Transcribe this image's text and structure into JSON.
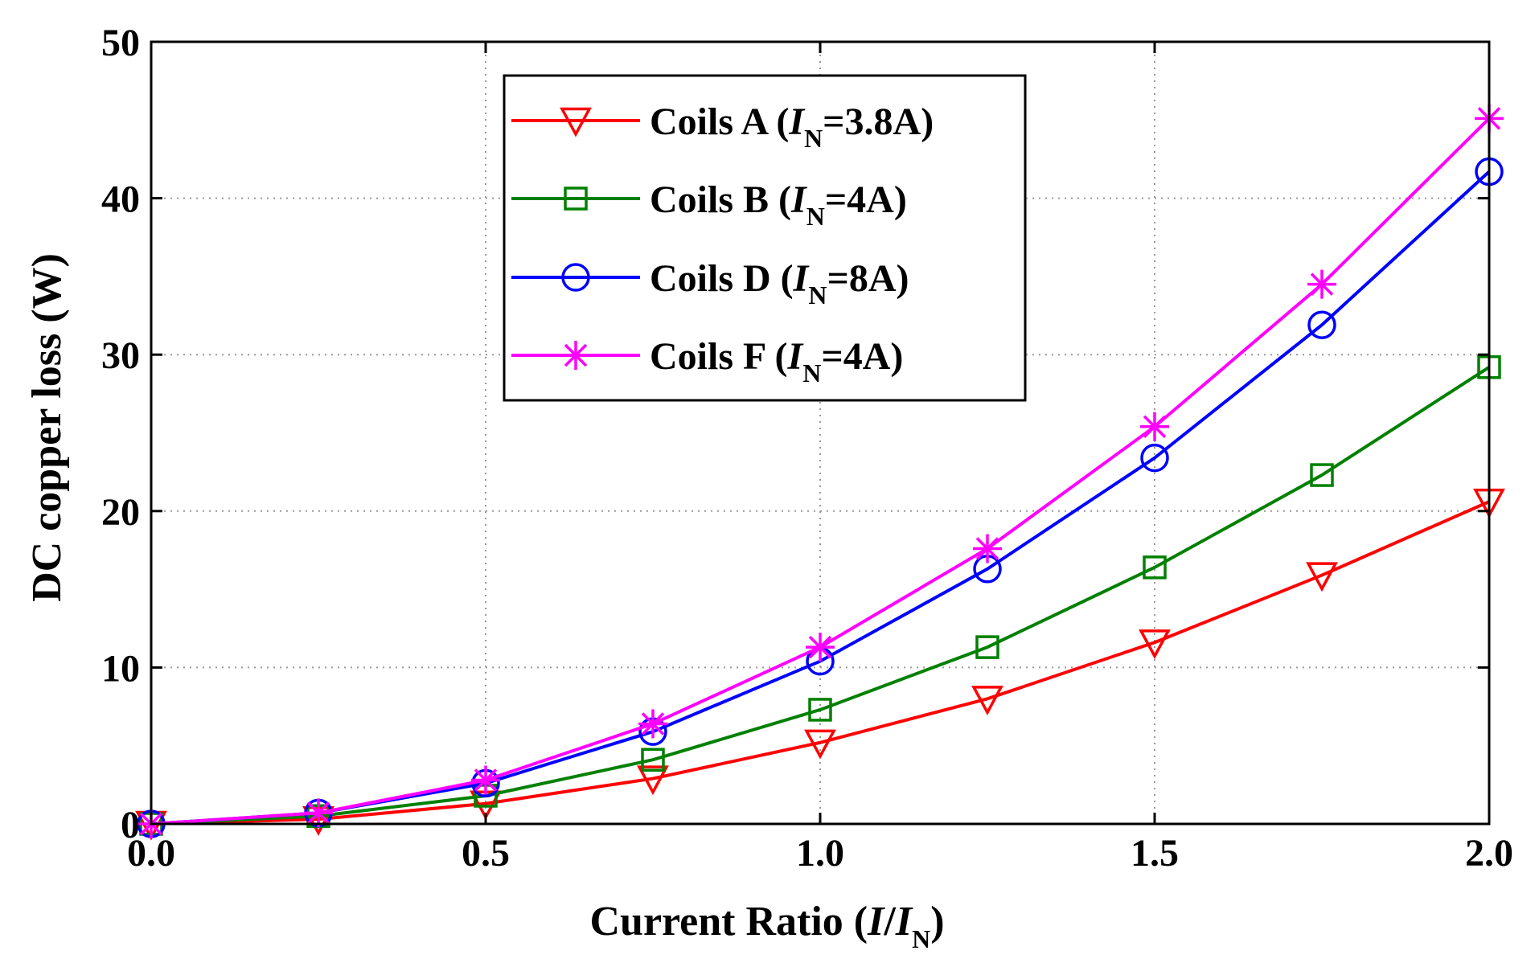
{
  "chart_data": {
    "type": "line",
    "title": "",
    "xlabel": {
      "main": "Current Ratio (",
      "italic_1": "I",
      "slash": "/",
      "italic_2": "I",
      "subscript": "N",
      "close": ")"
    },
    "ylabel": "DC copper loss (W)",
    "xlim": [
      0,
      2
    ],
    "ylim": [
      0,
      50
    ],
    "xticks": [
      "0.0",
      "0.5",
      "1.0",
      "1.5",
      "2.0"
    ],
    "xtick_values": [
      0,
      0.5,
      1.0,
      1.5,
      2.0
    ],
    "yticks": [
      "0",
      "10",
      "20",
      "30",
      "40",
      "50"
    ],
    "ytick_values": [
      0,
      10,
      20,
      30,
      40,
      50
    ],
    "grid": true,
    "legend_position": "top-center",
    "x": [
      0,
      0.25,
      0.5,
      0.75,
      1.0,
      1.25,
      1.5,
      1.75,
      2.0
    ],
    "series": [
      {
        "name": "Coils A",
        "legend_prefix": "Coils A (",
        "legend_italic": "I",
        "legend_sub": "N",
        "legend_suffix": "=3.8A)",
        "color": "#ff0000",
        "marker": "triangle-down",
        "values": [
          0,
          0.3,
          1.3,
          2.9,
          5.2,
          8.0,
          11.6,
          15.9,
          20.6
        ]
      },
      {
        "name": "Coils B",
        "legend_prefix": "Coils B (",
        "legend_italic": "I",
        "legend_sub": "N",
        "legend_suffix": "=4A)",
        "color": "#008000",
        "marker": "square",
        "values": [
          0,
          0.5,
          1.8,
          4.1,
          7.3,
          11.3,
          16.4,
          22.3,
          29.2
        ]
      },
      {
        "name": "Coils D",
        "legend_prefix": "Coils D (",
        "legend_italic": "I",
        "legend_sub": "N",
        "legend_suffix": "=8A)",
        "color": "#0000ff",
        "marker": "circle",
        "values": [
          0,
          0.7,
          2.6,
          5.9,
          10.4,
          16.3,
          23.4,
          31.9,
          41.7
        ]
      },
      {
        "name": "Coils F",
        "legend_prefix": "Coils F (",
        "legend_italic": "I",
        "legend_sub": "N",
        "legend_suffix": "=4A)",
        "color": "#ff00ff",
        "marker": "asterisk",
        "values": [
          0,
          0.7,
          2.8,
          6.4,
          11.3,
          17.6,
          25.4,
          34.5,
          45.1
        ]
      }
    ]
  }
}
